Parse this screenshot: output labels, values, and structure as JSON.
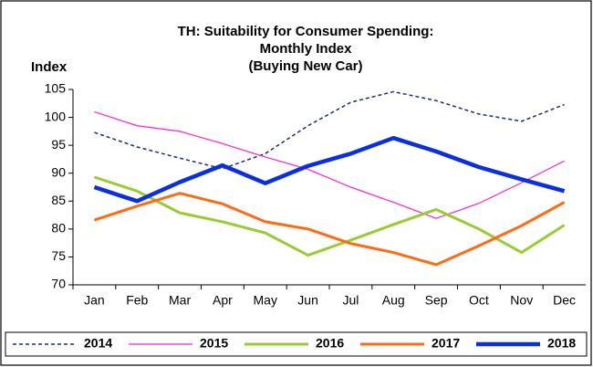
{
  "chart_data": {
    "type": "line",
    "title": [
      "TH: Suitability for Consumer Spending:",
      "Monthly Index",
      "(Buying New Car)"
    ],
    "y_label": "Index",
    "categories": [
      "Jan",
      "Feb",
      "Mar",
      "Apr",
      "May",
      "Jun",
      "Jul",
      "Aug",
      "Sep",
      "Oct",
      "Nov",
      "Dec"
    ],
    "ylim": [
      70,
      105
    ],
    "yticks": [
      70,
      75,
      80,
      85,
      90,
      95,
      100,
      105
    ],
    "legend": "bottom",
    "series": [
      {
        "name": "2014",
        "color": "#1f2a7a",
        "line_width": 1.5,
        "dashed": true,
        "values": [
          97.3,
          94.7,
          92.7,
          90.8,
          93.5,
          98.5,
          102.7,
          104.6,
          103,
          100.6,
          99.3,
          102.3
        ]
      },
      {
        "name": "2015",
        "color": "#ff1fd0",
        "line_width": 1.2,
        "dashed": false,
        "values": [
          101,
          98.5,
          97.5,
          95.3,
          92.9,
          90.7,
          87.5,
          84.8,
          81.9,
          84.6,
          88.3,
          92.2
        ]
      },
      {
        "name": "2016",
        "color": "#99cc33",
        "line_width": 3,
        "dashed": false,
        "values": [
          89.3,
          86.8,
          82.9,
          81.3,
          79.3,
          75.3,
          78,
          80.8,
          83.5,
          80,
          75.8,
          80.7
        ]
      },
      {
        "name": "2017",
        "color": "#ff6a13",
        "line_width": 3,
        "dashed": false,
        "values": [
          81.6,
          84.1,
          86.4,
          84.5,
          81.3,
          80,
          77.4,
          75.8,
          73.6,
          77,
          80.6,
          84.8
        ]
      },
      {
        "name": "2018",
        "color": "#0a2fe0",
        "line_width": 4.5,
        "dashed": false,
        "values": [
          87.5,
          85,
          88.4,
          91.4,
          88.2,
          91.3,
          93.5,
          96.3,
          93.9,
          91.1,
          88.9,
          86.8
        ]
      }
    ]
  }
}
